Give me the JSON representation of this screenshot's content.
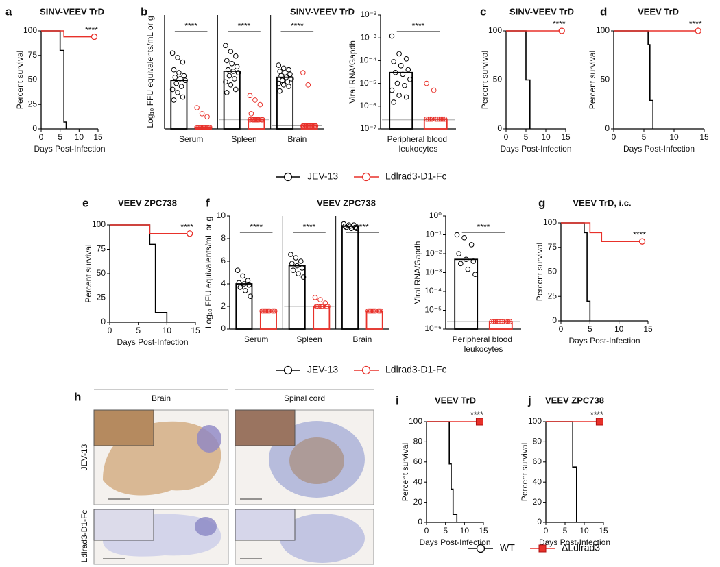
{
  "chart_data": [
    {
      "type": "survival",
      "panel": "a",
      "title": "SINV-VEEV TrD",
      "xlabel": "Days Post-Infection",
      "ylabel": "Percent survival",
      "xlim": [
        0,
        15
      ],
      "xticks": [
        0,
        5,
        10,
        15
      ],
      "ylim": [
        0,
        100
      ],
      "yticks": [
        0,
        25,
        50,
        75,
        100
      ],
      "annotation": "****",
      "series": [
        {
          "name": "JEV-13",
          "color": "#000000",
          "x": [
            0,
            5,
            6,
            6.6
          ],
          "values": [
            100,
            80,
            7,
            0
          ]
        },
        {
          "name": "Ldlrad3-D1-Fc",
          "color": "#e8312a",
          "marker": "circle",
          "x": [
            0,
            6,
            14
          ],
          "values": [
            100,
            94,
            94
          ]
        }
      ]
    },
    {
      "type": "dotbar",
      "panel": "b",
      "title": "SINV-VEEV TrD",
      "ylabel": "Log₁₀ FFU equivalents/mL or g",
      "categories": [
        "Serum",
        "Spleen",
        "Brain"
      ],
      "ylim": [
        0.5,
        8
      ],
      "significance": [
        "****",
        "****",
        "****"
      ],
      "lod": [
        0.55,
        1.1,
        0.7
      ],
      "series": [
        {
          "name": "JEV-13",
          "color": "#000000",
          "values": [
            3.7,
            4.3,
            3.9
          ],
          "points": [
            [
              5.5,
              5.2,
              4.9,
              4.4,
              4.2,
              4.0,
              3.9,
              3.8,
              3.7,
              3.5,
              3.3,
              3.1,
              2.9,
              2.6,
              2.4
            ],
            [
              6.0,
              5.6,
              5.3,
              5.0,
              4.8,
              4.6,
              4.4,
              4.3,
              4.2,
              4.0,
              3.8,
              3.6,
              3.4,
              3.1,
              2.9
            ],
            [
              4.7,
              4.5,
              4.4,
              4.3,
              4.2,
              4.1,
              4.0,
              3.9,
              3.8,
              3.7,
              3.6,
              3.5,
              3.4,
              3.3,
              3.0
            ]
          ]
        },
        {
          "name": "Ldlrad3-D1-Fc",
          "color": "#e8312a",
          "values": [
            0.6,
            1.1,
            0.7
          ],
          "points": [
            [
              1.9,
              1.5,
              1.3,
              0.6,
              0.6,
              0.6,
              0.6,
              0.6,
              0.6,
              0.6,
              0.6,
              0.6,
              0.6,
              0.6
            ],
            [
              2.7,
              2.4,
              2.1,
              1.5,
              1.1,
              1.1,
              1.1,
              1.1,
              1.1,
              1.1,
              1.1,
              1.1,
              1.1
            ],
            [
              4.2,
              3.4,
              0.7,
              0.7,
              0.7,
              0.7,
              0.7,
              0.7,
              0.7,
              0.7,
              0.7,
              0.7,
              0.7
            ]
          ]
        }
      ]
    },
    {
      "type": "dotbar",
      "ylabel": "Viral RNA/Gapdh",
      "categories": [
        "Peripheral blood leukocytes"
      ],
      "ylog": true,
      "ylim": [
        1e-07,
        0.01
      ],
      "yticks": [
        {
          "value": 1e-07,
          "label": "10⁻⁷"
        },
        {
          "value": 1e-06,
          "label": "10⁻⁶"
        },
        {
          "value": 1e-05,
          "label": "10⁻⁵"
        },
        {
          "value": 0.0001,
          "label": "10⁻⁴"
        },
        {
          "value": 0.001,
          "label": "10⁻³"
        },
        {
          "value": 0.01,
          "label": "10⁻²"
        }
      ],
      "significance": [
        "****"
      ],
      "lod": [
        2.5e-07
      ],
      "series": [
        {
          "name": "JEV-13",
          "color": "#000000",
          "values": [
            3e-05
          ],
          "points": [
            [
              0.0012,
              0.0002,
              0.00012,
              9e-05,
              6e-05,
              4e-05,
              3e-05,
              2.5e-05,
              1.5e-05,
              1e-05,
              8e-06,
              5e-06,
              3e-06,
              2.5e-06,
              1.5e-06
            ]
          ]
        },
        {
          "name": "Ldlrad3-D1-Fc",
          "color": "#e8312a",
          "values": [
            2.7e-07
          ],
          "points": [
            [
              1e-05,
              5e-06,
              2.7e-07,
              2.7e-07,
              2.7e-07,
              2.7e-07,
              2.7e-07,
              2.7e-07,
              2.7e-07,
              2.7e-07,
              2.7e-07,
              2.7e-07
            ]
          ]
        }
      ]
    },
    {
      "type": "survival",
      "panel": "c",
      "title": "SINV-VEEV TrD",
      "xlabel": "Days Post-Infection",
      "ylabel": "Percent survival",
      "xlim": [
        0,
        15
      ],
      "xticks": [
        0,
        5,
        10,
        15
      ],
      "ylim": [
        0,
        100
      ],
      "yticks": [
        0,
        50,
        100
      ],
      "annotation": "****",
      "series": [
        {
          "name": "JEV-13",
          "color": "#000000",
          "x": [
            0,
            5,
            6
          ],
          "values": [
            100,
            50,
            0
          ]
        },
        {
          "name": "Ldlrad3-D1-Fc",
          "color": "#e8312a",
          "marker": "circle",
          "x": [
            0,
            14
          ],
          "values": [
            100,
            100
          ]
        }
      ]
    },
    {
      "type": "survival",
      "panel": "d",
      "title": "VEEV TrD",
      "xlabel": "Days Post-Infection",
      "ylabel": "Percent survival",
      "xlim": [
        0,
        15
      ],
      "xticks": [
        0,
        5,
        10,
        15
      ],
      "ylim": [
        0,
        100
      ],
      "yticks": [
        0,
        50,
        100
      ],
      "annotation": "****",
      "series": [
        {
          "name": "JEV-13",
          "color": "#000000",
          "x": [
            0,
            5.7,
            6,
            6.5
          ],
          "values": [
            100,
            86,
            29,
            0
          ]
        },
        {
          "name": "Ldlrad3-D1-Fc",
          "color": "#e8312a",
          "marker": "circle",
          "x": [
            0,
            14
          ],
          "values": [
            100,
            100
          ]
        }
      ]
    },
    {
      "type": "survival",
      "panel": "e",
      "title": "VEEV ZPC738",
      "xlabel": "Days Post-Infection",
      "ylabel": "Percent survival",
      "xlim": [
        0,
        15
      ],
      "xticks": [
        0,
        5,
        10,
        15
      ],
      "ylim": [
        0,
        100
      ],
      "yticks": [
        0,
        25,
        50,
        75,
        100
      ],
      "annotation": "****",
      "series": [
        {
          "name": "JEV-13",
          "color": "#000000",
          "x": [
            0,
            7,
            8,
            10
          ],
          "values": [
            100,
            80,
            10,
            0
          ]
        },
        {
          "name": "Ldlrad3-D1-Fc",
          "color": "#e8312a",
          "marker": "circle",
          "x": [
            0,
            7,
            14
          ],
          "values": [
            100,
            91,
            91
          ]
        }
      ]
    },
    {
      "type": "dotbar",
      "panel": "f",
      "title": "VEEV ZPC738",
      "ylabel": "Log₁₀ FFU equivalents/mL or g",
      "categories": [
        "Serum",
        "Spleen",
        "Brain"
      ],
      "ylim": [
        0,
        10
      ],
      "yticks": [
        0,
        2,
        4,
        6,
        8,
        10
      ],
      "significance": [
        "****",
        "****",
        "****"
      ],
      "lod": [
        1.6,
        2.0,
        1.6
      ],
      "series": [
        {
          "name": "JEV-13",
          "color": "#000000",
          "values": [
            4.0,
            5.6,
            9.1
          ],
          "points": [
            [
              5.2,
              4.7,
              4.3,
              4.1,
              4.0,
              3.9,
              3.7,
              3.4,
              2.9
            ],
            [
              6.6,
              6.3,
              6.0,
              5.8,
              5.6,
              5.4,
              5.2,
              4.9,
              4.6
            ],
            [
              9.3,
              9.2,
              9.2,
              9.1,
              9.1,
              9.0,
              9.0,
              8.9,
              8.9
            ]
          ]
        },
        {
          "name": "Ldlrad3-D1-Fc",
          "color": "#e8312a",
          "values": [
            1.6,
            2.0,
            1.6
          ],
          "points": [
            [
              1.6,
              1.6,
              1.6,
              1.6,
              1.6,
              1.6,
              1.6,
              1.6,
              1.6,
              1.6
            ],
            [
              2.8,
              2.6,
              2.3,
              2.0,
              2.0,
              2.0,
              2.0,
              2.0,
              2.0,
              2.0
            ],
            [
              1.6,
              1.6,
              1.6,
              1.6,
              1.6,
              1.6,
              1.6,
              1.6,
              1.6,
              1.6
            ]
          ]
        }
      ]
    },
    {
      "type": "dotbar",
      "ylabel": "Viral RNA/Gapdh",
      "categories": [
        "Peripheral blood leukocytes"
      ],
      "ylog": true,
      "ylim": [
        1e-06,
        1
      ],
      "yticks": [
        {
          "value": 1e-06,
          "label": "10⁻⁶"
        },
        {
          "value": 1e-05,
          "label": "10⁻⁵"
        },
        {
          "value": 0.0001,
          "label": "10⁻⁴"
        },
        {
          "value": 0.001,
          "label": "10⁻³"
        },
        {
          "value": 0.01,
          "label": "10⁻²"
        },
        {
          "value": 0.1,
          "label": "10⁻¹"
        },
        {
          "value": 1,
          "label": "10⁰"
        }
      ],
      "significance": [
        "****"
      ],
      "lod": [
        2.5e-06
      ],
      "series": [
        {
          "name": "JEV-13",
          "color": "#000000",
          "values": [
            0.005
          ],
          "points": [
            [
              0.1,
              0.07,
              0.03,
              0.01,
              0.005,
              0.004,
              0.003,
              0.0015,
              0.0008
            ]
          ]
        },
        {
          "name": "Ldlrad3-D1-Fc",
          "color": "#e8312a",
          "values": [
            2.5e-06
          ],
          "points": [
            [
              2.5e-06,
              2.5e-06,
              2.5e-06,
              2.5e-06,
              2.5e-06,
              2.5e-06,
              2.5e-06,
              2.5e-06,
              2.5e-06,
              2.5e-06
            ]
          ]
        }
      ]
    },
    {
      "type": "survival",
      "panel": "g",
      "title": "VEEV TrD, i.c.",
      "xlabel": "Days Post-Infection",
      "ylabel": "Percent survival",
      "xlim": [
        0,
        15
      ],
      "xticks": [
        0,
        5,
        10,
        15
      ],
      "ylim": [
        0,
        100
      ],
      "yticks": [
        0,
        25,
        50,
        75,
        100
      ],
      "annotation": "****",
      "series": [
        {
          "name": "JEV-13",
          "color": "#000000",
          "x": [
            0,
            4,
            4.5,
            5
          ],
          "values": [
            100,
            90,
            20,
            0
          ]
        },
        {
          "name": "Ldlrad3-D1-Fc",
          "color": "#e8312a",
          "marker": "circle",
          "x": [
            0,
            5,
            7,
            14
          ],
          "values": [
            100,
            90,
            81,
            81
          ]
        }
      ]
    },
    {
      "type": "survival",
      "panel": "i",
      "title": "VEEV TrD",
      "xlabel": "Days Post-Infection",
      "ylabel": "Percent survival",
      "xlim": [
        0,
        15
      ],
      "xticks": [
        0,
        5,
        10,
        15
      ],
      "ylim": [
        0,
        100
      ],
      "yticks": [
        0,
        20,
        40,
        60,
        80,
        100
      ],
      "annotation": "****",
      "series": [
        {
          "name": "WT",
          "color": "#000000",
          "x": [
            0,
            6,
            6.5,
            7,
            8
          ],
          "values": [
            100,
            58,
            33,
            8,
            0
          ]
        },
        {
          "name": "ΔLdlrad3",
          "color": "#e8312a",
          "marker": "square",
          "x": [
            0,
            14
          ],
          "values": [
            100,
            100
          ]
        }
      ]
    },
    {
      "type": "survival",
      "panel": "j",
      "title": "VEEV ZPC738",
      "xlabel": "Days Post-Infection",
      "ylabel": "Percent survival",
      "xlim": [
        0,
        15
      ],
      "xticks": [
        0,
        5,
        10,
        15
      ],
      "ylim": [
        0,
        100
      ],
      "yticks": [
        0,
        20,
        40,
        60,
        80,
        100
      ],
      "annotation": "****",
      "series": [
        {
          "name": "WT",
          "color": "#000000",
          "x": [
            0,
            7,
            8
          ],
          "values": [
            100,
            55,
            0
          ]
        },
        {
          "name": "ΔLdlrad3",
          "color": "#e8312a",
          "marker": "square",
          "x": [
            0,
            14
          ],
          "values": [
            100,
            100
          ]
        }
      ]
    }
  ],
  "image_panel": {
    "panel": "h",
    "columns": [
      "Brain",
      "Spinal cord"
    ],
    "rows": [
      "JEV-13",
      "Ldlrad3-D1-Fc"
    ]
  }
}
